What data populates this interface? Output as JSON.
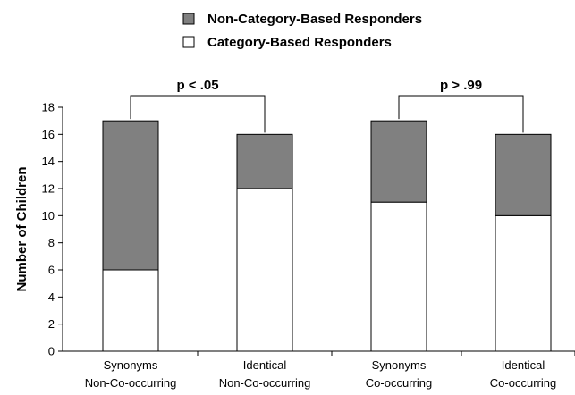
{
  "chart_data": {
    "type": "bar",
    "stacked": true,
    "categories": [
      [
        "Synonyms",
        "Non-Co-occurring"
      ],
      [
        "Identical",
        "Non-Co-occurring"
      ],
      [
        "Synonyms",
        "Co-occurring"
      ],
      [
        "Identical",
        "Co-occurring"
      ]
    ],
    "series": [
      {
        "name": "Category-Based Responders",
        "color": "#ffffff",
        "values": [
          6,
          12,
          11,
          10
        ]
      },
      {
        "name": "Non-Category-Based Responders",
        "color": "#808080",
        "values": [
          11,
          4,
          6,
          6
        ]
      }
    ],
    "legend_order": [
      1,
      0
    ],
    "legend_position": "top",
    "ylabel": "Number of Children",
    "ylim": [
      0,
      18
    ],
    "yticks": [
      0,
      2,
      4,
      6,
      8,
      10,
      12,
      14,
      16,
      18
    ],
    "grid": false,
    "annotations": [
      {
        "text": "p < .05",
        "from_category": 0,
        "to_category": 1
      },
      {
        "text": "p > .99",
        "from_category": 2,
        "to_category": 3
      }
    ]
  }
}
